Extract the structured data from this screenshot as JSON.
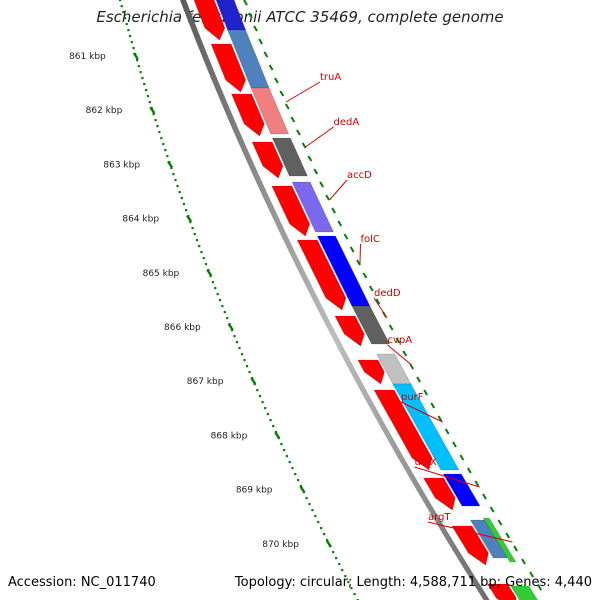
{
  "title": "Escherichia fergusonii ATCC 35469, complete genome",
  "footer": {
    "accession": "Accession: NC_011740",
    "summary": "Topology: circular; Length: 4,588,711 bp; Genes: 4,440"
  },
  "ruler": {
    "labels": [
      "861 kbp",
      "862 kbp",
      "863 kbp",
      "864 kbp",
      "865 kbp",
      "866 kbp",
      "867 kbp",
      "868 kbp",
      "869 kbp",
      "870 kbp"
    ],
    "tick_color": "#008000"
  },
  "colors": {
    "backbone": "#8c8c8c",
    "forward_track": "#ff0000",
    "label_color": "#dd0000"
  },
  "genes": [
    {
      "name": "truA",
      "color": "#4f81bd"
    },
    {
      "name": "dedA",
      "color": "#f08080"
    },
    {
      "name": "accD",
      "color": "#606060"
    },
    {
      "name": "folC",
      "color": "#7b68ee"
    },
    {
      "name": "dedD",
      "color": "#0000ff"
    },
    {
      "name": "cvpA",
      "color": "#606060"
    },
    {
      "name": "purF",
      "color": "#c0c0c0"
    },
    {
      "name": "ubiX",
      "color": "#00bfff"
    },
    {
      "name": "argT",
      "color": "#0000ff"
    }
  ]
}
